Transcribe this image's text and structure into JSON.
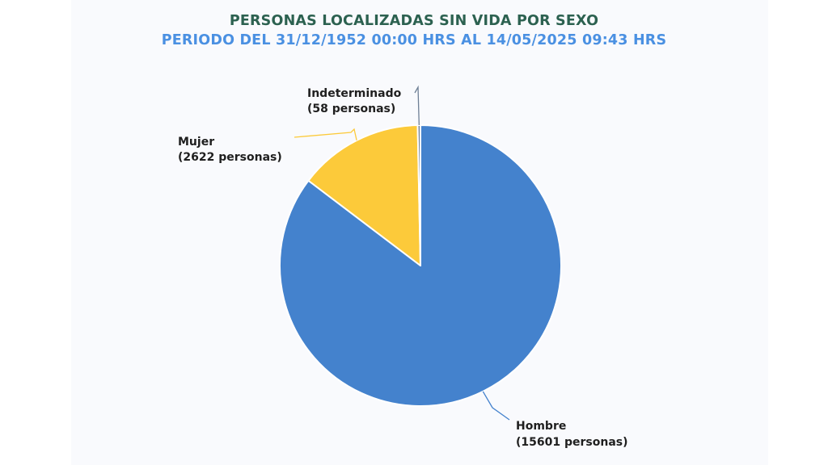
{
  "chart_data": {
    "type": "pie",
    "title": "PERSONAS LOCALIZADAS SIN VIDA POR SEXO",
    "subtitle": "PERIODO DEL 31/12/1952 00:00 HRS AL 14/05/2025 09:43 HRS",
    "slices": [
      {
        "label": "Hombre",
        "value": 15601,
        "value_text": "(15601 personas)",
        "color": "#4482cd"
      },
      {
        "label": "Mujer",
        "value": 2622,
        "value_text": "(2622 personas)",
        "color": "#fcca3a"
      },
      {
        "label": "Indeterminado",
        "value": 58,
        "value_text": "(58 personas)",
        "color": "#6e7f95"
      }
    ],
    "colors": {
      "title": "#2c6150",
      "subtitle": "#4a90e2",
      "background": "#f9fafd"
    }
  }
}
